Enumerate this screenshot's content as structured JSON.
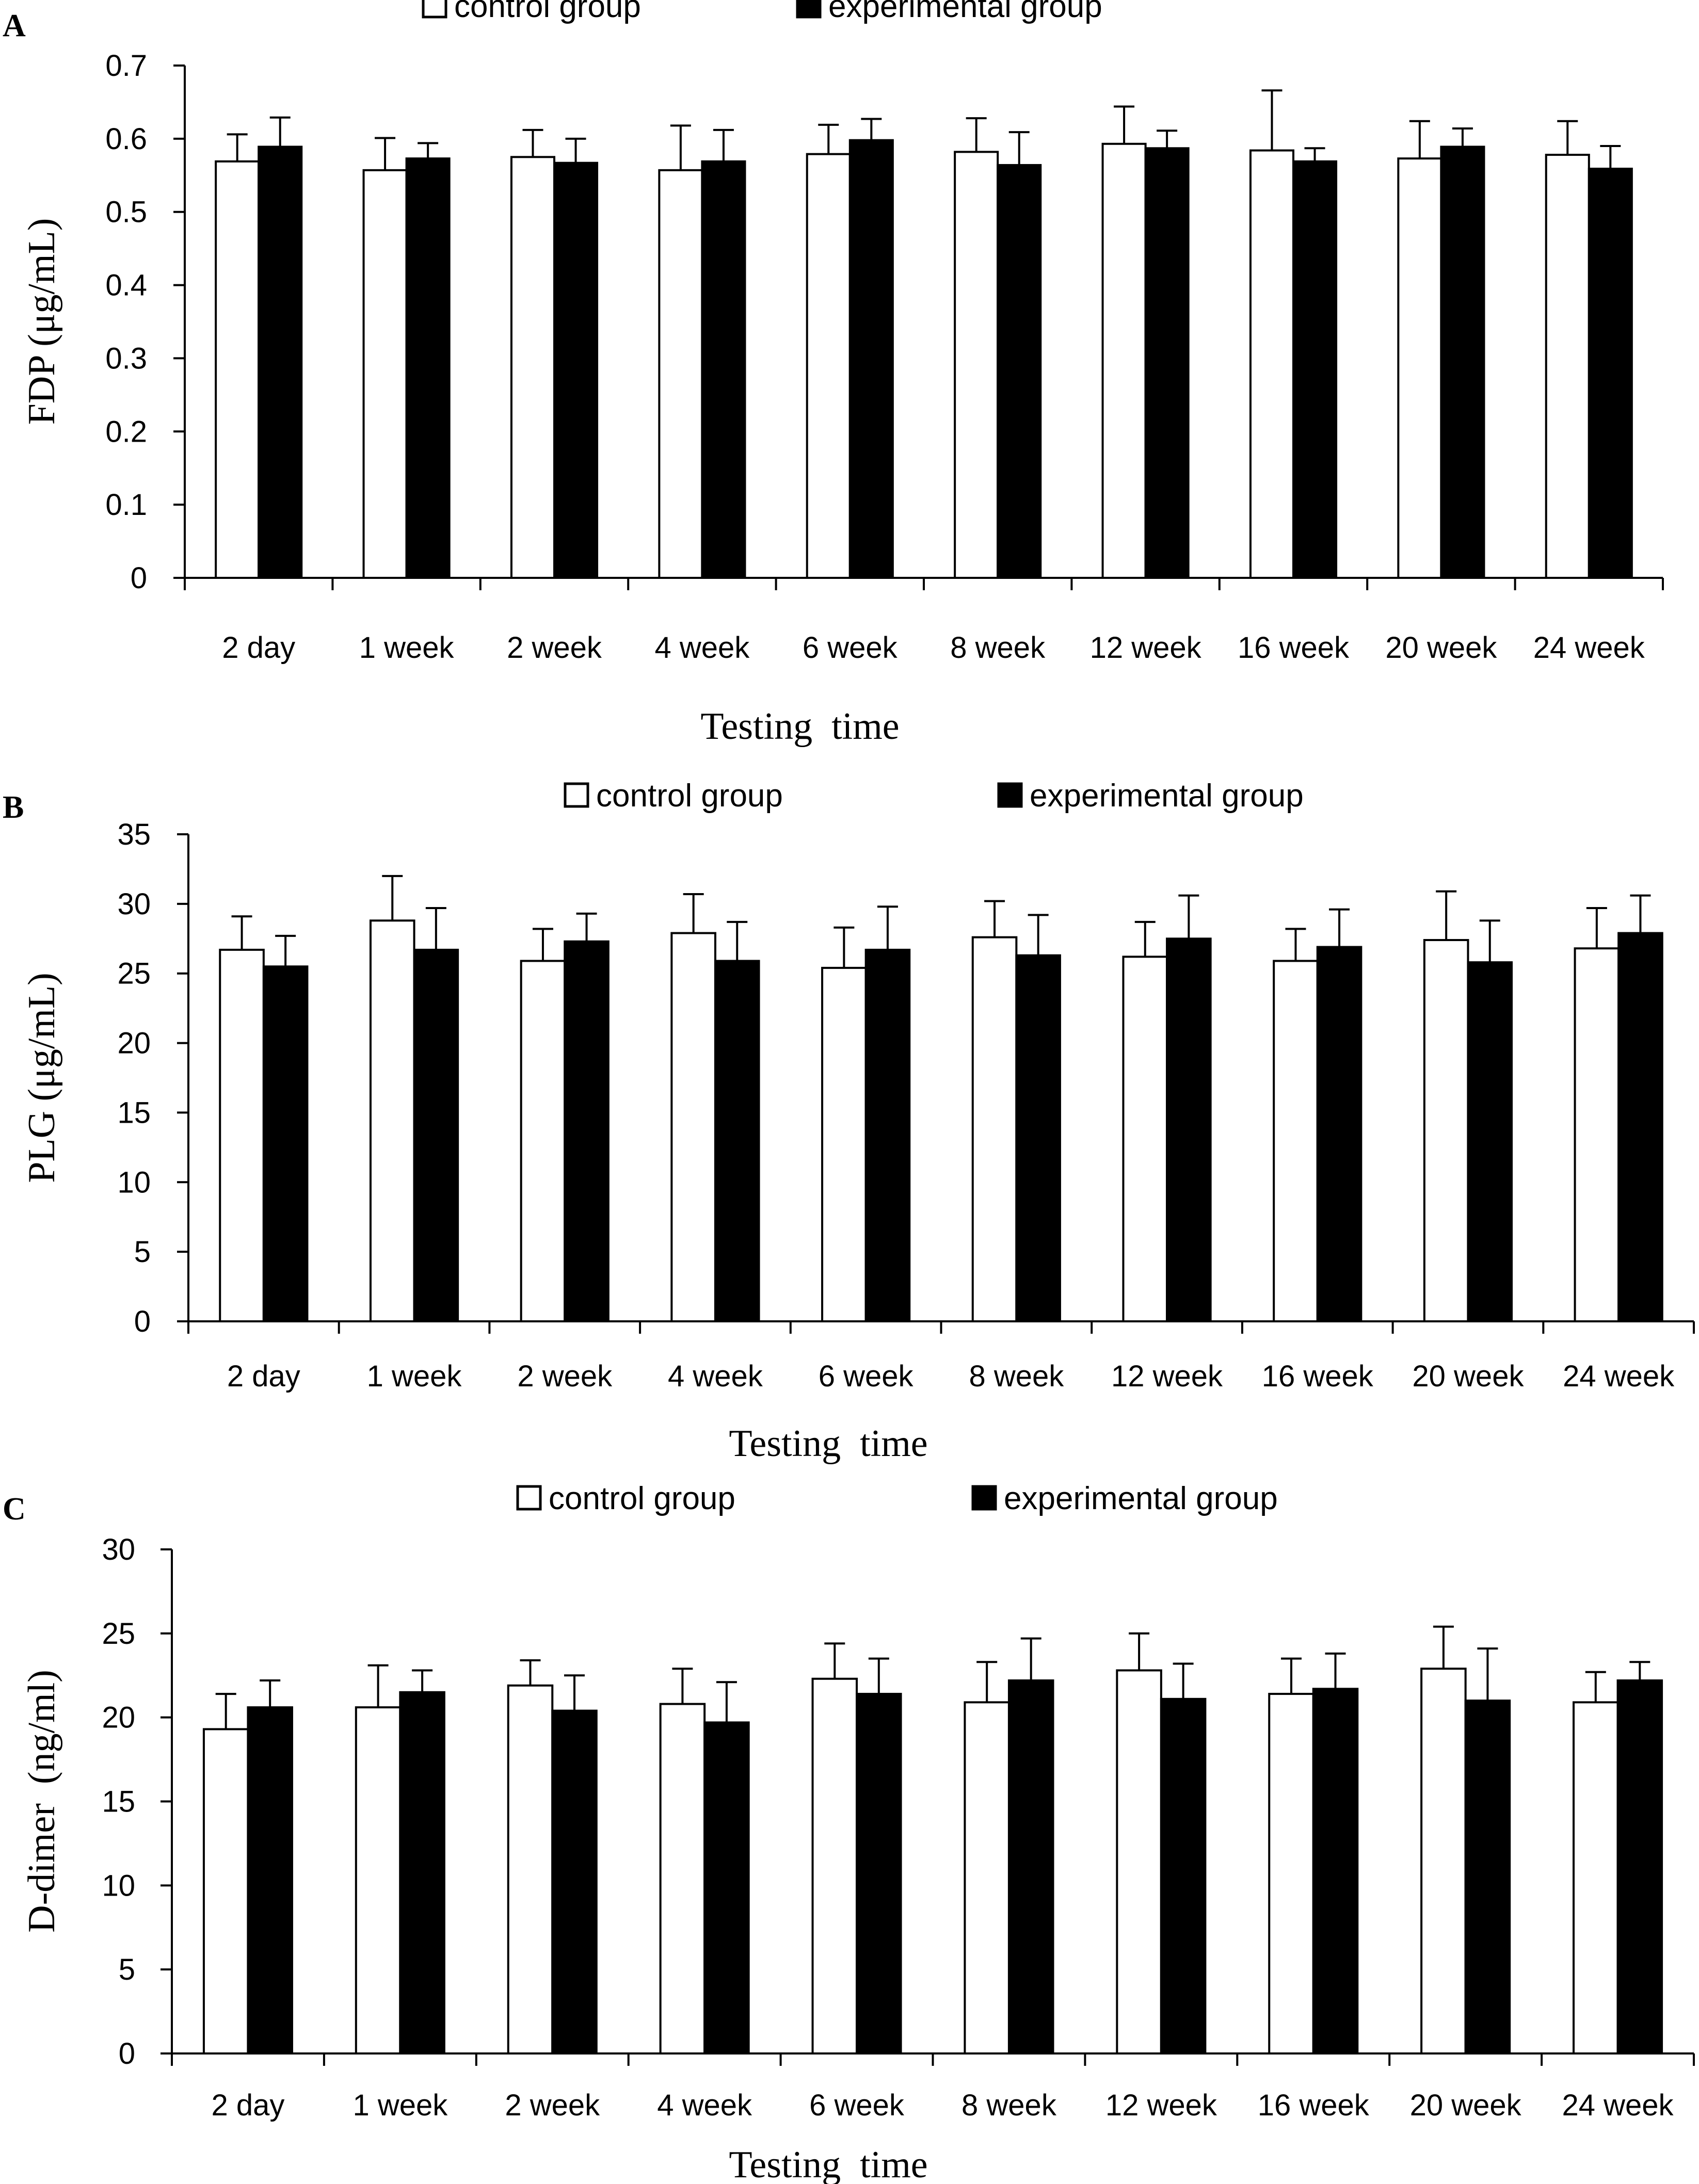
{
  "chart_data": [
    {
      "type": "bar",
      "panel": "A",
      "legend": [
        "control group",
        "experimental group"
      ],
      "xlabel": "Testing  time",
      "ylabel": "FDP (μg/mL)",
      "ylim": [
        0,
        0.7
      ],
      "yticks": [
        "0",
        "0.1",
        "0.2",
        "0.3",
        "0.4",
        "0.5",
        "0.6",
        "0.7"
      ],
      "categories": [
        "2 day",
        "1 week",
        "2 week",
        "4 week",
        "6 week",
        "8 week",
        "12 week",
        "16 week",
        "20 week",
        "24 week"
      ],
      "series": [
        {
          "name": "control group",
          "fill": "#ffffff",
          "values": [
            0.569,
            0.557,
            0.575,
            0.557,
            0.579,
            0.582,
            0.593,
            0.584,
            0.573,
            0.578
          ],
          "errors": [
            0.037,
            0.044,
            0.037,
            0.061,
            0.04,
            0.046,
            0.051,
            0.082,
            0.051,
            0.046
          ]
        },
        {
          "name": "experimental group",
          "fill": "#000000",
          "values": [
            0.589,
            0.573,
            0.567,
            0.569,
            0.598,
            0.564,
            0.587,
            0.569,
            0.589,
            0.559
          ],
          "errors": [
            0.04,
            0.021,
            0.033,
            0.043,
            0.029,
            0.045,
            0.024,
            0.018,
            0.025,
            0.031
          ]
        }
      ]
    },
    {
      "type": "bar",
      "panel": "B",
      "legend": [
        "control group",
        "experimental group"
      ],
      "xlabel": "Testing  time",
      "ylabel": "PLG (μg/mL)",
      "ylim": [
        0,
        35
      ],
      "yticks": [
        "0",
        "5",
        "10",
        "15",
        "20",
        "25",
        "30",
        "35"
      ],
      "categories": [
        "2 day",
        "1 week",
        "2 week",
        "4 week",
        "6 week",
        "8 week",
        "12 week",
        "16 week",
        "20 week",
        "24 week"
      ],
      "series": [
        {
          "name": "control group",
          "fill": "#ffffff",
          "values": [
            26.7,
            28.8,
            25.9,
            27.9,
            25.4,
            27.6,
            26.2,
            25.9,
            27.4,
            26.8
          ],
          "errors": [
            2.4,
            3.2,
            2.3,
            2.8,
            2.9,
            2.6,
            2.5,
            2.3,
            3.5,
            2.9
          ]
        },
        {
          "name": "experimental group",
          "fill": "#000000",
          "values": [
            25.5,
            26.7,
            27.3,
            25.9,
            26.7,
            26.3,
            27.5,
            26.9,
            25.8,
            27.9
          ],
          "errors": [
            2.2,
            3.0,
            2.0,
            2.8,
            3.1,
            2.9,
            3.1,
            2.7,
            3.0,
            2.7
          ]
        }
      ]
    },
    {
      "type": "bar",
      "panel": "C",
      "legend": [
        "control group",
        "experimental group"
      ],
      "xlabel": "Testing  time",
      "ylabel": "D-dimer  (ng/ml)",
      "ylim": [
        0,
        30
      ],
      "yticks": [
        "0",
        "5",
        "10",
        "15",
        "20",
        "25",
        "30"
      ],
      "categories": [
        "2 day",
        "1 week",
        "2 week",
        "4 week",
        "6 week",
        "8 week",
        "12 week",
        "16 week",
        "20 week",
        "24 week"
      ],
      "series": [
        {
          "name": "control group",
          "fill": "#ffffff",
          "values": [
            19.3,
            20.6,
            21.9,
            20.8,
            22.3,
            20.9,
            22.8,
            21.4,
            22.9,
            20.9
          ],
          "errors": [
            2.1,
            2.5,
            1.5,
            2.1,
            2.1,
            2.4,
            2.2,
            2.1,
            2.5,
            1.8
          ]
        },
        {
          "name": "experimental group",
          "fill": "#000000",
          "values": [
            20.6,
            21.5,
            20.4,
            19.7,
            21.4,
            22.2,
            21.1,
            21.7,
            21.0,
            22.2
          ],
          "errors": [
            1.6,
            1.3,
            2.1,
            2.4,
            2.1,
            2.5,
            2.1,
            2.1,
            3.1,
            1.1
          ]
        }
      ]
    }
  ]
}
